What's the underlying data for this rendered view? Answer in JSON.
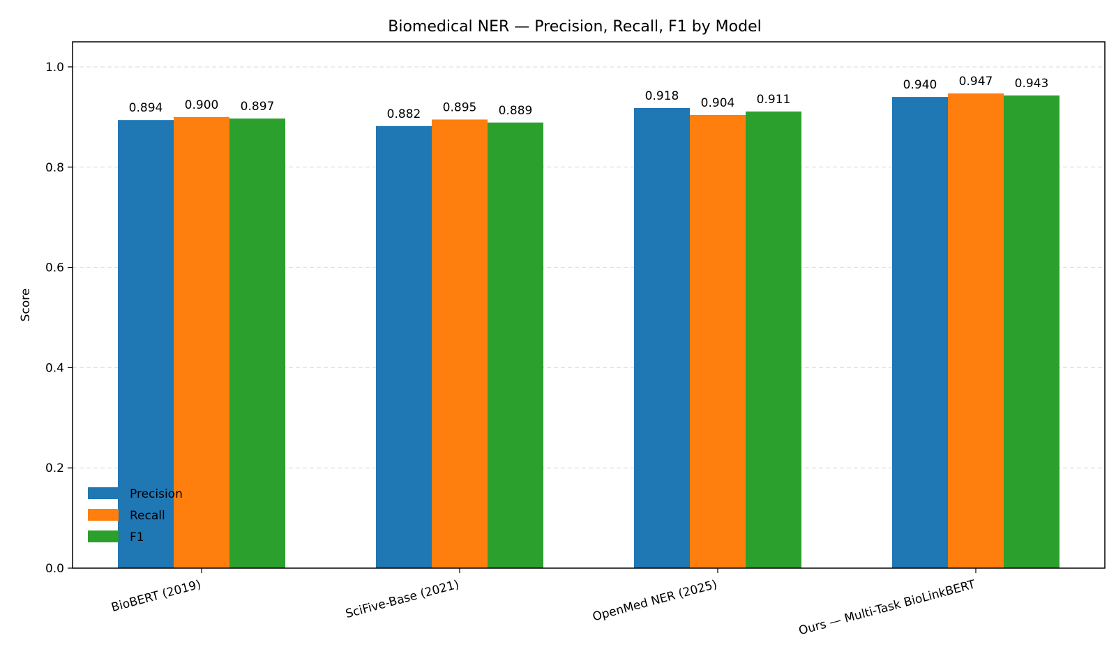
{
  "chart_data": {
    "type": "bar",
    "title": "Biomedical NER — Precision, Recall, F1 by Model",
    "xlabel": "",
    "ylabel": "Score",
    "ylim": [
      0,
      1.05
    ],
    "yticks": [
      0.0,
      0.2,
      0.4,
      0.6,
      0.8,
      1.0
    ],
    "ytick_labels": [
      "0.0",
      "0.2",
      "0.4",
      "0.6",
      "0.8",
      "1.0"
    ],
    "grid": "horizontal dashed",
    "legend_position": "lower-left",
    "categories": [
      "BioBERT (2019)",
      "SciFive-Base (2021)",
      "OpenMed NER (2025)",
      "Ours — Multi-Task BioLinkBERT"
    ],
    "series": [
      {
        "name": "Precision",
        "color": "#1f77b4",
        "values": [
          0.894,
          0.882,
          0.918,
          0.94
        ],
        "labels": [
          "0.894",
          "0.882",
          "0.918",
          "0.940"
        ]
      },
      {
        "name": "Recall",
        "color": "#ff7f0e",
        "values": [
          0.9,
          0.895,
          0.904,
          0.947
        ],
        "labels": [
          "0.900",
          "0.895",
          "0.904",
          "0.947"
        ]
      },
      {
        "name": "F1",
        "color": "#2ca02c",
        "values": [
          0.897,
          0.889,
          0.911,
          0.943
        ],
        "labels": [
          "0.897",
          "0.889",
          "0.911",
          "0.943"
        ]
      }
    ]
  }
}
